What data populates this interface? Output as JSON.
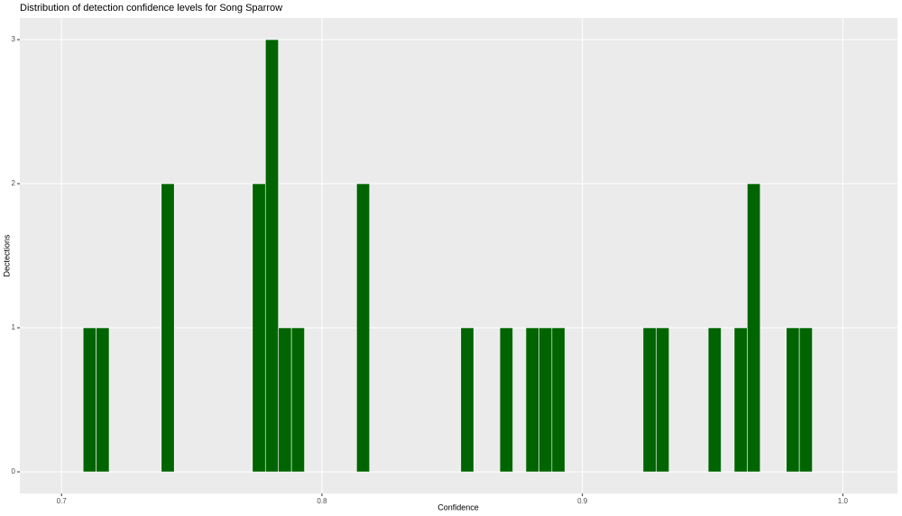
{
  "chart_data": {
    "type": "histogram",
    "title": "Distribution of detection confidence levels for Song Sparrow",
    "x_label": "Confidence",
    "y_label": "Dectections",
    "bins": [
      0.7083,
      0.7133,
      0.7183,
      0.7233,
      0.7283,
      0.7333,
      0.7383,
      0.7433,
      0.7483,
      0.7533,
      0.7583,
      0.7633,
      0.7683,
      0.7733,
      0.7783,
      0.7833,
      0.7883,
      0.7933,
      0.7983,
      0.8033,
      0.8083,
      0.8133,
      0.8183,
      0.8233,
      0.8283,
      0.8333,
      0.8383,
      0.8433,
      0.8483,
      0.8533,
      0.8583,
      0.8633,
      0.8683,
      0.8733,
      0.8783,
      0.8833,
      0.8883,
      0.8933,
      0.8983,
      0.9033,
      0.9083,
      0.9133,
      0.9183,
      0.9233,
      0.9283,
      0.9333,
      0.9383,
      0.9433,
      0.9483,
      0.9533,
      0.9583,
      0.9633,
      0.9683,
      0.9733,
      0.9783,
      0.9833,
      0.9883
    ],
    "counts": [
      1,
      1,
      0,
      0,
      0,
      0,
      2,
      0,
      0,
      0,
      0,
      0,
      0,
      2,
      3,
      1,
      1,
      0,
      0,
      0,
      0,
      2,
      0,
      0,
      0,
      0,
      0,
      0,
      0,
      1,
      0,
      0,
      1,
      0,
      1,
      1,
      1,
      0,
      0,
      0,
      0,
      0,
      0,
      1,
      1,
      0,
      0,
      0,
      1,
      0,
      1,
      2,
      0,
      0,
      1,
      1
    ],
    "color": "#006400",
    "xlim": [
      0.684,
      1.021
    ],
    "xticks": [
      0.7,
      0.8,
      0.9,
      {
        "value": 1,
        "label": "1.0"
      }
    ],
    "ylim": [
      -0.15,
      3.15
    ],
    "yticks": [
      0,
      1,
      2,
      3
    ],
    "grid": true
  }
}
